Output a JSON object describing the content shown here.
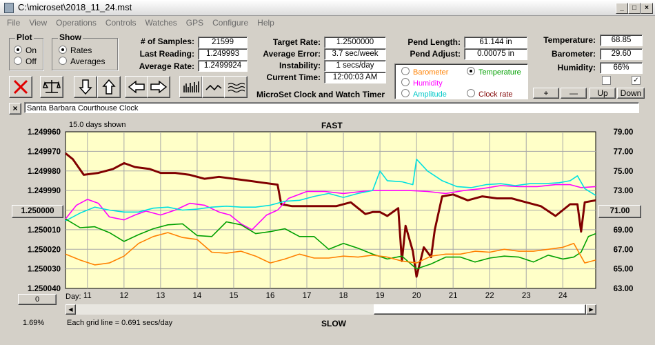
{
  "title": "C:\\microset\\2018_11_24.mst",
  "menu": [
    "File",
    "View",
    "Operations",
    "Controls",
    "Watches",
    "GPS",
    "Configure",
    "Help"
  ],
  "plot": {
    "label": "Plot",
    "on": "On",
    "off": "Off"
  },
  "show": {
    "label": "Show",
    "rates": "Rates",
    "averages": "Averages"
  },
  "stats": {
    "samples_label": "# of Samples:",
    "samples": "21599",
    "last_label": "Last Reading:",
    "last": "1.249993",
    "avg_label": "Average Rate:",
    "avg": "1.2499924",
    "target_label": "Target Rate:",
    "target": "1.2500000",
    "avgerr_label": "Average Error:",
    "avgerr": "3.7 sec/week",
    "instab_label": "Instability:",
    "instab": "1 secs/day",
    "time_label": "Current Time:",
    "time": "12:00:03 AM",
    "pendlen_label": "Pend Length:",
    "pendlen": "61.144 in",
    "pendadj_label": "Pend Adjust:",
    "pendadj": "0.00075 in",
    "temp_label": "Temperature:",
    "temp": "68.85",
    "baro_label": "Barometer:",
    "baro": "29.60",
    "hum_label": "Humidity:",
    "hum": "66%"
  },
  "app_caption": "MicroSet Clock and Watch Timer",
  "legend": {
    "barometer": "Barometer",
    "temperature": "Temperature",
    "humidity": "Humidity",
    "amplitude": "Amplitude",
    "clockrate": "Clock rate",
    "colors": {
      "barometer": "#ff8000",
      "temperature": "#00a000",
      "humidity": "#ff00ff",
      "amplitude": "#00e0e0",
      "clockrate": "#800000"
    }
  },
  "ctrl_buttons": {
    "plus": "+",
    "minus": "—",
    "up": "Up",
    "down": "Down"
  },
  "clock_name": "Santa Barbara Courthouse Clock",
  "chart": {
    "days_shown": "15.0 days shown",
    "fast": "FAST",
    "slow": "SLOW",
    "center_left": "1.250000",
    "center_right": "71.00",
    "day_label": "Day:",
    "zero_btn": "0",
    "pct": "1.69%",
    "grid_note": "Each grid line = 0.691 secs/day"
  },
  "chart_data": {
    "type": "line",
    "x_label": "Day:",
    "x_ticks": [
      "11",
      "12",
      "13",
      "14",
      "15",
      "16",
      "17",
      "18",
      "19",
      "20",
      "21",
      "22",
      "23",
      "24"
    ],
    "left_ticks": [
      "1.249960",
      "1.249970",
      "1.249980",
      "1.249990",
      "1.250000",
      "1.250010",
      "1.250020",
      "1.250030",
      "1.250040"
    ],
    "right_ticks": [
      "79.00",
      "77.00",
      "75.00",
      "73.00",
      "71.00",
      "69.00",
      "67.00",
      "65.00",
      "63.00"
    ],
    "ylim_left": [
      1.24996,
      1.25004
    ],
    "ylim_right": [
      63,
      79
    ],
    "xlim": [
      10.4,
      24.9
    ],
    "grid": true,
    "series": [
      {
        "name": "Clock rate",
        "color": "#800000",
        "axis": "left",
        "x": [
          10.4,
          10.6,
          10.9,
          11.3,
          11.7,
          12.0,
          12.3,
          12.7,
          13.0,
          13.4,
          13.8,
          14.2,
          14.6,
          15.0,
          15.4,
          15.8,
          16.2,
          16.3,
          16.6,
          17.0,
          17.4,
          17.8,
          18.2,
          18.6,
          18.8,
          19.0,
          19.2,
          19.5,
          19.6,
          19.7,
          19.9,
          20.0,
          20.2,
          20.4,
          20.5,
          20.7,
          21.0,
          21.4,
          21.8,
          22.2,
          22.6,
          23.0,
          23.4,
          23.8,
          24.2,
          24.4,
          24.5,
          24.6,
          24.9
        ],
        "y": [
          1.249971,
          1.249974,
          1.249982,
          1.249981,
          1.249979,
          1.249976,
          1.249978,
          1.249979,
          1.249981,
          1.249981,
          1.249982,
          1.249984,
          1.249983,
          1.249984,
          1.249985,
          1.249986,
          1.249987,
          1.249997,
          1.249998,
          1.249998,
          1.249998,
          1.249998,
          1.249996,
          1.250002,
          1.250001,
          1.250001,
          1.250003,
          1.249999,
          1.250026,
          1.250008,
          1.250021,
          1.250034,
          1.250019,
          1.250024,
          1.25001,
          1.249993,
          1.249992,
          1.249995,
          1.249993,
          1.249994,
          1.249994,
          1.249996,
          1.249998,
          1.250003,
          1.249997,
          1.249997,
          1.250011,
          1.249996,
          1.249995
        ]
      },
      {
        "name": "Humidity",
        "color": "#ff00ff",
        "axis": "right",
        "x": [
          10.4,
          10.7,
          11.0,
          11.3,
          11.6,
          12.0,
          12.3,
          12.6,
          13.0,
          13.4,
          13.8,
          14.2,
          14.6,
          14.9,
          15.2,
          15.5,
          15.9,
          16.2,
          16.5,
          17.0,
          17.5,
          18.0,
          18.5,
          18.8,
          19.0,
          19.4,
          19.8,
          20.3,
          20.8,
          21.3,
          21.8,
          22.3,
          22.8,
          23.3,
          23.8,
          24.2,
          24.5,
          24.9
        ],
        "y": [
          70.1,
          71.5,
          72.1,
          71.7,
          70.3,
          70.0,
          70.5,
          70.9,
          70.5,
          71.0,
          71.7,
          71.5,
          70.8,
          70.5,
          69.6,
          69.0,
          70.5,
          71.0,
          72.2,
          72.9,
          72.9,
          72.7,
          72.9,
          73.0,
          73.0,
          73.0,
          73.0,
          72.9,
          72.7,
          73.0,
          73.2,
          73.5,
          73.4,
          73.4,
          73.6,
          73.6,
          73.3,
          73.4
        ]
      },
      {
        "name": "Amplitude",
        "color": "#00e0e0",
        "axis": "right",
        "x": [
          10.4,
          10.8,
          11.2,
          11.6,
          12.0,
          12.4,
          12.8,
          13.2,
          13.6,
          14.0,
          14.4,
          14.8,
          15.2,
          15.6,
          16.0,
          16.4,
          16.8,
          17.2,
          17.6,
          18.0,
          18.4,
          18.8,
          19.0,
          19.2,
          19.6,
          19.9,
          20.0,
          20.3,
          20.7,
          21.1,
          21.5,
          21.9,
          22.3,
          22.7,
          23.1,
          23.5,
          23.9,
          24.2,
          24.4,
          24.6,
          24.9
        ],
        "y": [
          69.9,
          70.7,
          71.3,
          71.0,
          70.8,
          70.8,
          71.2,
          71.3,
          71.0,
          71.1,
          71.3,
          71.4,
          71.3,
          71.3,
          71.5,
          71.9,
          72.0,
          72.4,
          72.7,
          72.3,
          72.7,
          73.0,
          75.0,
          74.0,
          73.9,
          73.6,
          76.2,
          75.0,
          74.0,
          73.4,
          73.3,
          73.6,
          73.7,
          73.5,
          73.7,
          73.7,
          73.8,
          74.0,
          74.5,
          73.2,
          72.5
        ]
      },
      {
        "name": "Temperature",
        "color": "#00a000",
        "axis": "right",
        "x": [
          10.4,
          10.8,
          11.2,
          11.6,
          12.0,
          12.4,
          12.8,
          13.2,
          13.6,
          14.0,
          14.4,
          14.8,
          15.2,
          15.6,
          16.0,
          16.4,
          16.8,
          17.2,
          17.6,
          18.0,
          18.4,
          18.8,
          19.2,
          19.6,
          20.0,
          20.4,
          20.8,
          21.2,
          21.6,
          22.0,
          22.4,
          22.8,
          23.2,
          23.6,
          24.0,
          24.3,
          24.5,
          24.7,
          24.9
        ],
        "y": [
          70.1,
          69.2,
          69.3,
          68.7,
          67.8,
          68.5,
          69.1,
          69.5,
          69.6,
          68.4,
          68.3,
          69.8,
          69.5,
          68.6,
          68.8,
          69.1,
          68.3,
          68.3,
          67.0,
          67.6,
          67.1,
          66.5,
          66.0,
          66.3,
          65.0,
          65.5,
          66.2,
          66.2,
          65.7,
          66.1,
          66.3,
          66.2,
          65.7,
          66.4,
          66.0,
          66.2,
          66.7,
          68.3,
          68.6
        ]
      },
      {
        "name": "Barometer",
        "color": "#ff8000",
        "axis": "right",
        "x": [
          10.4,
          10.8,
          11.2,
          11.6,
          12.0,
          12.4,
          12.8,
          13.2,
          13.6,
          14.0,
          14.4,
          14.8,
          15.2,
          15.6,
          16.0,
          16.4,
          16.8,
          17.2,
          17.6,
          18.0,
          18.4,
          18.8,
          19.2,
          19.6,
          20.0,
          20.4,
          20.8,
          21.2,
          21.6,
          22.0,
          22.4,
          22.8,
          23.2,
          23.6,
          24.0,
          24.3,
          24.6,
          24.9
        ],
        "y": [
          66.5,
          65.9,
          65.4,
          65.6,
          66.3,
          67.6,
          68.3,
          68.7,
          68.2,
          68.0,
          66.7,
          66.6,
          66.8,
          66.3,
          65.6,
          66.0,
          66.5,
          66.1,
          66.1,
          66.3,
          66.2,
          66.4,
          66.2,
          65.8,
          65.6,
          66.3,
          66.5,
          66.5,
          66.8,
          66.7,
          67.0,
          66.8,
          66.8,
          67.0,
          67.2,
          67.6,
          65.6,
          65.9
        ]
      }
    ]
  }
}
